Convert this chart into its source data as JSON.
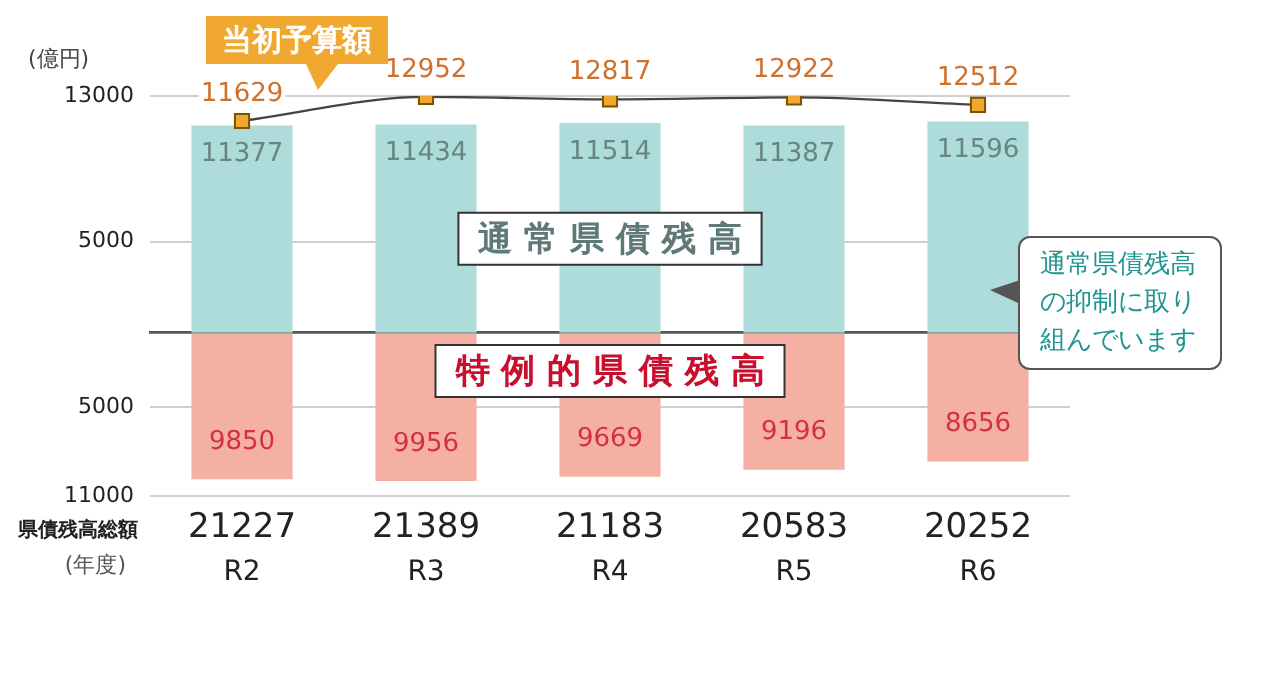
{
  "chart_data": [
    {
      "type": "bar",
      "ylabel": "(億円)",
      "categories": [
        null,
        null,
        null,
        null,
        null
      ],
      "series": [
        {
          "name": "通常県債残高",
          "color": "#addcdb",
          "values": [
            11377,
            11434,
            11514,
            11387,
            11596
          ],
          "value_labels": [
            "11377",
            "11434",
            "11514",
            "11387",
            "11596"
          ]
        },
        {
          "name": "当初予算額",
          "type": "line",
          "color": "#f0a830",
          "values": [
            11629,
            12952,
            12817,
            12922,
            12512
          ],
          "value_labels": [
            "11629",
            "12952",
            "12817",
            "12922",
            "12512"
          ]
        }
      ],
      "ylim": [
        0,
        13000
      ],
      "yticks": [
        5000,
        13000
      ],
      "tick_labels": "y",
      "annotations": [
        "通常県債残高の抑制に取り組んでいます"
      ],
      "grid": "y",
      "marker": "square",
      "legend": false
    },
    {
      "type": "bar",
      "xlabel": "(年度)",
      "categories": [
        "R2",
        "R3",
        "R4",
        "R5",
        "R6"
      ],
      "series": [
        {
          "name": "特例的県債残高",
          "color": "#f4b1a3",
          "values": [
            9850,
            9956,
            9669,
            9196,
            8656
          ],
          "value_labels": [
            "9850",
            "9956",
            "9669",
            "9196",
            "8656"
          ]
        }
      ],
      "ylim": [
        11000,
        0
      ],
      "yticks": [
        5000,
        11000
      ],
      "annotations": [
        "県債残高総額",
        "21227",
        "21389",
        "21183",
        "20583",
        "20252"
      ],
      "grid": "y",
      "legend": false
    }
  ]
}
